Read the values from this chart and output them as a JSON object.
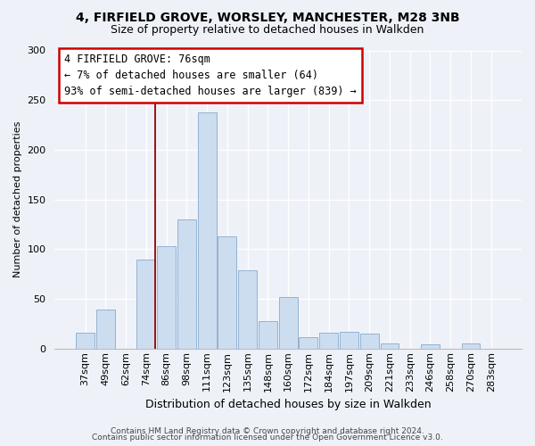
{
  "title1": "4, FIRFIELD GROVE, WORSLEY, MANCHESTER, M28 3NB",
  "title2": "Size of property relative to detached houses in Walkden",
  "xlabel": "Distribution of detached houses by size in Walkden",
  "ylabel": "Number of detached properties",
  "bar_labels": [
    "37sqm",
    "49sqm",
    "62sqm",
    "74sqm",
    "86sqm",
    "98sqm",
    "111sqm",
    "123sqm",
    "135sqm",
    "148sqm",
    "160sqm",
    "172sqm",
    "184sqm",
    "197sqm",
    "209sqm",
    "221sqm",
    "233sqm",
    "246sqm",
    "258sqm",
    "270sqm",
    "283sqm"
  ],
  "bar_values": [
    16,
    39,
    0,
    90,
    103,
    130,
    238,
    113,
    79,
    28,
    52,
    12,
    16,
    17,
    15,
    5,
    0,
    4,
    0,
    5,
    0
  ],
  "bar_color": "#ccddf0",
  "bar_edge_color": "#88aacc",
  "vline_color": "#991111",
  "annotation_title": "4 FIRFIELD GROVE: 76sqm",
  "annotation_line1": "← 7% of detached houses are smaller (64)",
  "annotation_line2": "93% of semi-detached houses are larger (839) →",
  "ann_box_color": "#ffffff",
  "ann_box_edge": "#cc0000",
  "ylim": [
    0,
    300
  ],
  "yticks": [
    0,
    50,
    100,
    150,
    200,
    250,
    300
  ],
  "footnote1": "Contains HM Land Registry data © Crown copyright and database right 2024.",
  "footnote2": "Contains public sector information licensed under the Open Government Licence v3.0.",
  "background_color": "#eef2f8",
  "grid_color": "#ffffff",
  "title1_fontsize": 10,
  "title2_fontsize": 9,
  "ylabel_fontsize": 8,
  "xlabel_fontsize": 9,
  "tick_fontsize": 8,
  "footnote_fontsize": 6.5
}
